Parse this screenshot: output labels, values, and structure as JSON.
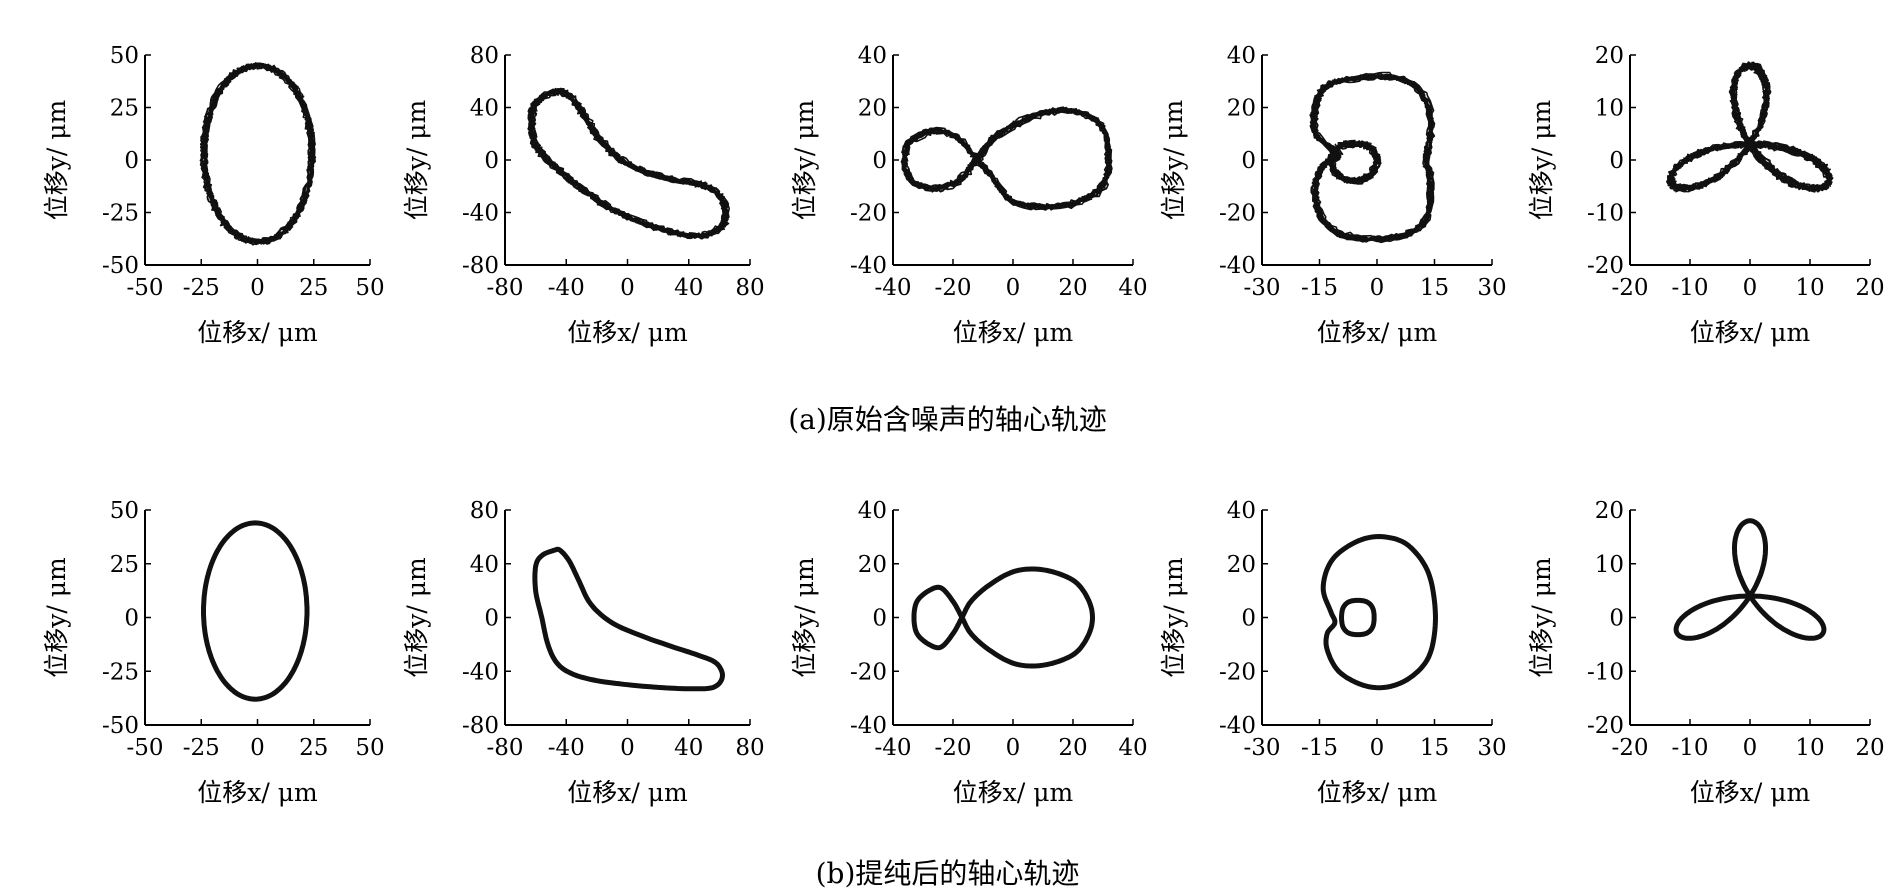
{
  "captions": {
    "a": "(a)原始含噪声的轴心轨迹",
    "b": "(b)提纯后的轴心轨迹"
  },
  "colors": {
    "axis": "#000000",
    "trace": "#111111",
    "background": "#ffffff"
  },
  "chart_data": [
    {
      "id": "a1",
      "row": "a",
      "type": "line",
      "shape": "ellipse",
      "noisy": true,
      "xlabel": "位移x/ μm",
      "ylabel": "位移y/ μm",
      "xlim": [
        -50,
        50
      ],
      "ylim": [
        -50,
        50
      ],
      "xticks": [
        -50,
        -25,
        0,
        25,
        50
      ],
      "yticks": [
        -50,
        -25,
        0,
        25,
        50
      ],
      "series": [
        {
          "orbit": {
            "kind": "ellipse",
            "cx": 0,
            "cy": 3,
            "ax": 24,
            "ay": 42
          }
        }
      ]
    },
    {
      "id": "a2",
      "row": "a",
      "type": "line",
      "shape": "banana",
      "noisy": true,
      "xlabel": "位移x/ μm",
      "ylabel": "位移y/ μm",
      "xlim": [
        -80,
        80
      ],
      "ylim": [
        -80,
        80
      ],
      "xticks": [
        -80,
        -40,
        0,
        40,
        80
      ],
      "yticks": [
        -80,
        -40,
        0,
        40,
        80
      ],
      "series": [
        {
          "points": [
            [
              -48,
              52
            ],
            [
              -56,
              48
            ],
            [
              -62,
              38
            ],
            [
              -62,
              20
            ],
            [
              -58,
              8
            ],
            [
              -48,
              -4
            ],
            [
              -36,
              -16
            ],
            [
              -20,
              -30
            ],
            [
              -2,
              -42
            ],
            [
              16,
              -50
            ],
            [
              34,
              -56
            ],
            [
              50,
              -57
            ],
            [
              62,
              -50
            ],
            [
              64,
              -36
            ],
            [
              58,
              -24
            ],
            [
              46,
              -18
            ],
            [
              28,
              -14
            ],
            [
              10,
              -8
            ],
            [
              -6,
              2
            ],
            [
              -18,
              16
            ],
            [
              -26,
              30
            ],
            [
              -34,
              44
            ],
            [
              -42,
              52
            ],
            [
              -48,
              52
            ]
          ]
        }
      ]
    },
    {
      "id": "a3",
      "row": "a",
      "type": "line",
      "shape": "figure-eight",
      "noisy": true,
      "xlabel": "位移x/ μm",
      "ylabel": "位移y/ μm",
      "xlim": [
        -40,
        40
      ],
      "ylim": [
        -40,
        40
      ],
      "xticks": [
        -40,
        -20,
        0,
        20,
        40
      ],
      "yticks": [
        -40,
        -20,
        0,
        20,
        40
      ],
      "series": [
        {
          "points": [
            [
              -12,
              0
            ],
            [
              -18,
              8
            ],
            [
              -26,
              11
            ],
            [
              -34,
              7
            ],
            [
              -36,
              0
            ],
            [
              -34,
              -8
            ],
            [
              -26,
              -11
            ],
            [
              -18,
              -8
            ],
            [
              -12,
              0
            ],
            [
              -6,
              8
            ],
            [
              2,
              14
            ],
            [
              12,
              18
            ],
            [
              22,
              18
            ],
            [
              30,
              12
            ],
            [
              32,
              0
            ],
            [
              30,
              -10
            ],
            [
              22,
              -16
            ],
            [
              12,
              -18
            ],
            [
              0,
              -16
            ],
            [
              -6,
              -8
            ],
            [
              -12,
              0
            ]
          ]
        }
      ]
    },
    {
      "id": "a4",
      "row": "a",
      "type": "line",
      "shape": "outer-inner-loop",
      "noisy": true,
      "xlabel": "位移x/ μm",
      "ylabel": "位移y/ μm",
      "xlim": [
        -30,
        30
      ],
      "ylim": [
        -40,
        40
      ],
      "xticks": [
        -30,
        -15,
        0,
        15,
        30
      ],
      "yticks": [
        -40,
        -20,
        0,
        20,
        40
      ],
      "series": [
        {
          "points": [
            [
              -10,
              30
            ],
            [
              0,
              32
            ],
            [
              8,
              30
            ],
            [
              13,
              22
            ],
            [
              14,
              10
            ],
            [
              13,
              0
            ],
            [
              14,
              -10
            ],
            [
              13,
              -22
            ],
            [
              8,
              -28
            ],
            [
              0,
              -30
            ],
            [
              -10,
              -28
            ],
            [
              -15,
              -20
            ],
            [
              -16,
              -10
            ],
            [
              -14,
              -2
            ],
            [
              -10,
              2
            ],
            [
              -16,
              10
            ],
            [
              -16,
              20
            ],
            [
              -14,
              27
            ],
            [
              -10,
              30
            ]
          ]
        },
        {
          "points": [
            [
              -10,
              5
            ],
            [
              -6,
              6
            ],
            [
              -2,
              5
            ],
            [
              0,
              0
            ],
            [
              -2,
              -6
            ],
            [
              -6,
              -8
            ],
            [
              -10,
              -6
            ],
            [
              -12,
              0
            ],
            [
              -10,
              5
            ]
          ]
        }
      ]
    },
    {
      "id": "a5",
      "row": "a",
      "type": "line",
      "shape": "three-petal",
      "noisy": true,
      "xlabel": "位移x/ μm",
      "ylabel": "位移y/ μm",
      "xlim": [
        -20,
        20
      ],
      "ylim": [
        -20,
        20
      ],
      "xticks": [
        -20,
        -10,
        0,
        10,
        20
      ],
      "yticks": [
        -20,
        -10,
        0,
        10,
        20
      ],
      "series": [
        {
          "orbit": {
            "kind": "rose",
            "cx": 0,
            "cy": 3,
            "r": 15,
            "petals": 3,
            "rot": 90
          }
        }
      ]
    },
    {
      "id": "b1",
      "row": "b",
      "type": "line",
      "shape": "ellipse",
      "noisy": false,
      "xlabel": "位移x/ μm",
      "ylabel": "位移y/ μm",
      "xlim": [
        -50,
        50
      ],
      "ylim": [
        -50,
        50
      ],
      "xticks": [
        -50,
        -25,
        0,
        25,
        50
      ],
      "yticks": [
        -50,
        -25,
        0,
        25,
        50
      ],
      "series": [
        {
          "orbit": {
            "kind": "ellipse",
            "cx": -1,
            "cy": 3,
            "ax": 23,
            "ay": 41
          }
        }
      ]
    },
    {
      "id": "b2",
      "row": "b",
      "type": "line",
      "shape": "banana",
      "noisy": false,
      "xlabel": "位移x/ μm",
      "ylabel": "位移y/ μm",
      "xlim": [
        -80,
        80
      ],
      "ylim": [
        -80,
        80
      ],
      "xticks": [
        -80,
        -40,
        0,
        40,
        80
      ],
      "yticks": [
        -80,
        -40,
        0,
        40,
        80
      ],
      "series": [
        {
          "points": [
            [
              -48,
              50
            ],
            [
              -56,
              46
            ],
            [
              -60,
              38
            ],
            [
              -60,
              20
            ],
            [
              -56,
              0
            ],
            [
              -52,
              -20
            ],
            [
              -46,
              -34
            ],
            [
              -36,
              -42
            ],
            [
              -20,
              -47
            ],
            [
              0,
              -50
            ],
            [
              20,
              -52
            ],
            [
              40,
              -53
            ],
            [
              56,
              -52
            ],
            [
              62,
              -44
            ],
            [
              58,
              -34
            ],
            [
              46,
              -28
            ],
            [
              30,
              -22
            ],
            [
              10,
              -14
            ],
            [
              -10,
              -4
            ],
            [
              -24,
              10
            ],
            [
              -32,
              28
            ],
            [
              -38,
              42
            ],
            [
              -44,
              50
            ],
            [
              -48,
              50
            ]
          ]
        }
      ]
    },
    {
      "id": "b3",
      "row": "b",
      "type": "line",
      "shape": "figure-eight",
      "noisy": false,
      "xlabel": "位移x/ μm",
      "ylabel": "位移y/ μm",
      "xlim": [
        -40,
        40
      ],
      "ylim": [
        -40,
        40
      ],
      "xticks": [
        -40,
        -20,
        0,
        20,
        40
      ],
      "yticks": [
        -40,
        -20,
        0,
        20,
        40
      ],
      "series": [
        {
          "points": [
            [
              -17,
              0
            ],
            [
              -20,
              6
            ],
            [
              -24,
              11
            ],
            [
              -28,
              10
            ],
            [
              -32,
              6
            ],
            [
              -33,
              0
            ],
            [
              -32,
              -6
            ],
            [
              -28,
              -10
            ],
            [
              -24,
              -11
            ],
            [
              -20,
              -6
            ],
            [
              -17,
              0
            ],
            [
              -14,
              6
            ],
            [
              -8,
              12
            ],
            [
              0,
              17
            ],
            [
              8,
              18
            ],
            [
              16,
              16
            ],
            [
              22,
              12
            ],
            [
              26,
              4
            ],
            [
              26,
              -4
            ],
            [
              22,
              -12
            ],
            [
              16,
              -16
            ],
            [
              8,
              -18
            ],
            [
              0,
              -17
            ],
            [
              -8,
              -12
            ],
            [
              -14,
              -6
            ],
            [
              -17,
              0
            ]
          ]
        }
      ]
    },
    {
      "id": "b4",
      "row": "b",
      "type": "line",
      "shape": "outer-inner-loop",
      "noisy": false,
      "xlabel": "位移x/ μm",
      "ylabel": "位移y/ μm",
      "xlim": [
        -30,
        30
      ],
      "ylim": [
        -40,
        40
      ],
      "xticks": [
        -30,
        -15,
        0,
        15,
        30
      ],
      "yticks": [
        -40,
        -20,
        0,
        20,
        40
      ],
      "series": [
        {
          "points": [
            [
              -10,
              24
            ],
            [
              -4,
              29
            ],
            [
              2,
              30
            ],
            [
              8,
              27
            ],
            [
              13,
              18
            ],
            [
              15,
              6
            ],
            [
              15,
              -6
            ],
            [
              13,
              -16
            ],
            [
              8,
              -23
            ],
            [
              2,
              -26
            ],
            [
              -4,
              -25
            ],
            [
              -10,
              -20
            ],
            [
              -13,
              -12
            ],
            [
              -13,
              -6
            ],
            [
              -11,
              -2
            ],
            [
              -12,
              2
            ],
            [
              -14,
              10
            ],
            [
              -13,
              18
            ],
            [
              -10,
              24
            ]
          ]
        },
        {
          "points": [
            [
              -7,
              6
            ],
            [
              -3,
              6
            ],
            [
              -1,
              3
            ],
            [
              -1,
              -3
            ],
            [
              -3,
              -6
            ],
            [
              -7,
              -6
            ],
            [
              -9,
              -3
            ],
            [
              -9,
              3
            ],
            [
              -7,
              6
            ]
          ]
        }
      ]
    },
    {
      "id": "b5",
      "row": "b",
      "type": "line",
      "shape": "three-petal",
      "noisy": false,
      "xlabel": "位移x/ μm",
      "ylabel": "位移y/ μm",
      "xlim": [
        -20,
        20
      ],
      "ylim": [
        -20,
        20
      ],
      "xticks": [
        -20,
        -10,
        0,
        10,
        20
      ],
      "yticks": [
        -20,
        -10,
        0,
        10,
        20
      ],
      "series": [
        {
          "orbit": {
            "kind": "rose",
            "cx": 0,
            "cy": 4,
            "r": 14,
            "petals": 3,
            "rot": 90
          }
        }
      ]
    }
  ]
}
